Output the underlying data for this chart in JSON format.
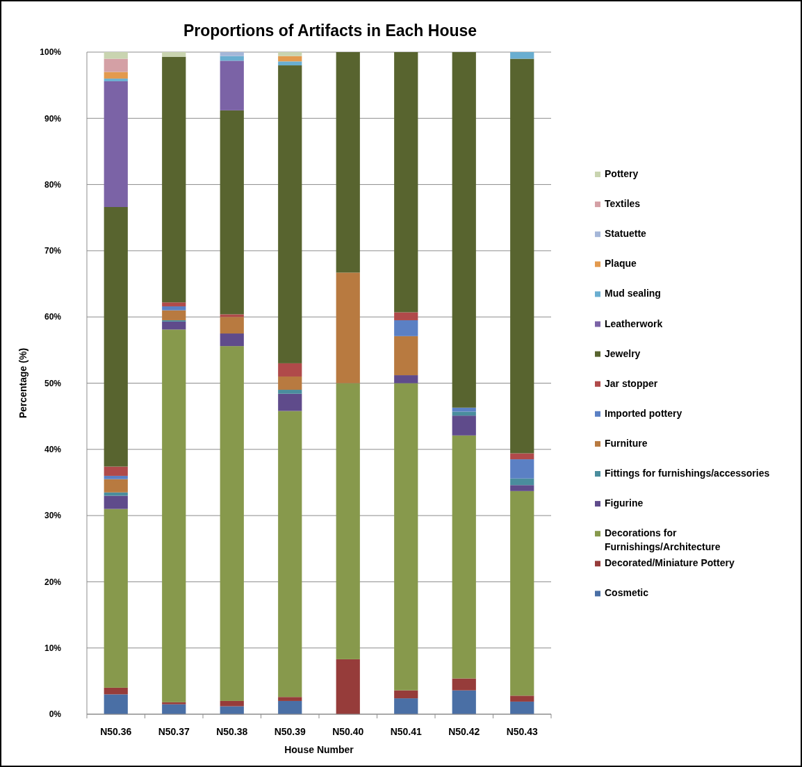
{
  "chart_data": {
    "type": "bar",
    "stacked": true,
    "title": "Proportions of Artifacts in Each House",
    "xlabel": "House Number",
    "ylabel": "Percentage (%)",
    "categories": [
      "N50.36",
      "N50.37",
      "N50.38",
      "N50.39",
      "N50.40",
      "N50.41",
      "N50.42",
      "N50.43"
    ],
    "ylim": [
      0,
      100
    ],
    "yticks": [
      {
        "value": 0,
        "label": "0%"
      },
      {
        "value": 10,
        "label": "10%"
      },
      {
        "value": 20,
        "label": "20%"
      },
      {
        "value": 30,
        "label": "30%"
      },
      {
        "value": 40,
        "label": "40%"
      },
      {
        "value": 50,
        "label": "50%"
      },
      {
        "value": 60,
        "label": "60%"
      },
      {
        "value": 70,
        "label": "70%"
      },
      {
        "value": 80,
        "label": "80%"
      },
      {
        "value": 90,
        "label": "90%"
      },
      {
        "value": 100,
        "label": "100%"
      }
    ],
    "grid": "y",
    "legend": "right",
    "series": [
      {
        "name": "Cosmetic",
        "color": "#4a6fa5",
        "values": [
          3,
          1.5,
          1.2,
          2,
          0,
          2.4,
          3.6,
          1.9
        ]
      },
      {
        "name": "Decorated/Miniature Pottery",
        "color": "#963c3a",
        "values": [
          1,
          0.3,
          0.8,
          0.6,
          8.3,
          1.2,
          1.8,
          0.9
        ]
      },
      {
        "name": "Decorations for Furnishings/Architecture",
        "color": "#87994c",
        "values": [
          27,
          56.3,
          53.6,
          43.2,
          41.7,
          46.4,
          36.7,
          30.9
        ]
      },
      {
        "name": "Figurine",
        "color": "#5f4b8b",
        "values": [
          2,
          1.2,
          1.9,
          2.6,
          0,
          1.2,
          3,
          0.9
        ]
      },
      {
        "name": "Fittings for furnishings/accessories",
        "color": "#4a8d9d",
        "values": [
          0.5,
          0.2,
          0,
          0.6,
          0,
          0,
          0.6,
          1
        ]
      },
      {
        "name": "Furniture",
        "color": "#b87a40",
        "values": [
          2,
          1.5,
          2.5,
          2,
          16.7,
          5.9,
          0,
          0
        ]
      },
      {
        "name": "Imported pottery",
        "color": "#5b80c4",
        "values": [
          0.5,
          0.6,
          0,
          0,
          0,
          2.4,
          0.6,
          2.9
        ]
      },
      {
        "name": "Jar stopper",
        "color": "#b04a4a",
        "values": [
          1.4,
          0.6,
          0.4,
          2,
          0,
          1.2,
          0,
          0.9
        ]
      },
      {
        "name": "Jewelry",
        "color": "#58642f",
        "values": [
          39.2,
          37.1,
          30.8,
          45,
          33.3,
          39.3,
          53.7,
          59.6
        ]
      },
      {
        "name": "Leatherwork",
        "color": "#7b63a6",
        "values": [
          19,
          0,
          7.5,
          0,
          0,
          0,
          0,
          0
        ]
      },
      {
        "name": "Mud sealing",
        "color": "#6aaed0",
        "values": [
          0.4,
          0,
          0.7,
          0.6,
          0,
          0,
          0,
          1
        ]
      },
      {
        "name": "Plaque",
        "color": "#e39a4e",
        "values": [
          1,
          0,
          0,
          0.8,
          0,
          0,
          0,
          0
        ]
      },
      {
        "name": "Statuette",
        "color": "#a5b7d8",
        "values": [
          0,
          0,
          0.6,
          0,
          0,
          0,
          0,
          0
        ]
      },
      {
        "name": "Textiles",
        "color": "#d4a0a5",
        "values": [
          2,
          0,
          0,
          0,
          0,
          0,
          0,
          0
        ]
      },
      {
        "name": "Pottery",
        "color": "#c9d4b0",
        "values": [
          1,
          0.7,
          0,
          0.6,
          0,
          0,
          0,
          0
        ]
      }
    ]
  }
}
